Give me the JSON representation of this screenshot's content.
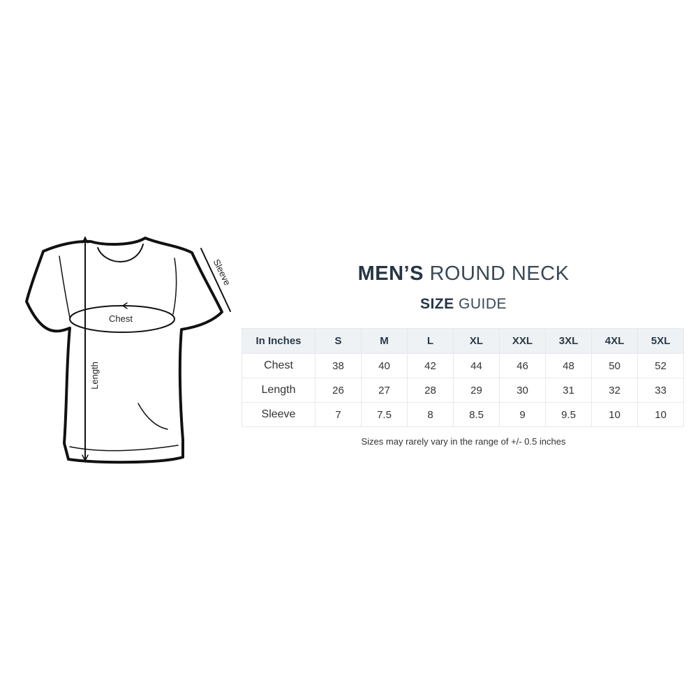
{
  "diagram": {
    "chest_label": "Chest",
    "length_label": "Length",
    "sleeve_label": "Sleeve"
  },
  "title": {
    "line1_bold": "MEN’S",
    "line1_light": "ROUND NECK",
    "line2_bold": "SIZE",
    "line2_light": "GUIDE"
  },
  "table": {
    "headers": [
      "In Inches",
      "S",
      "M",
      "L",
      "XL",
      "XXL",
      "3XL",
      "4XL",
      "5XL"
    ],
    "rows": [
      {
        "label": "Chest",
        "values": [
          "38",
          "40",
          "42",
          "44",
          "46",
          "48",
          "50",
          "52"
        ]
      },
      {
        "label": "Length",
        "values": [
          "26",
          "27",
          "28",
          "29",
          "30",
          "31",
          "32",
          "33"
        ]
      },
      {
        "label": "Sleeve",
        "values": [
          "7",
          "7.5",
          "8",
          "8.5",
          "9",
          "9.5",
          "10",
          "10"
        ]
      }
    ],
    "header_bg": "#eef2f5"
  },
  "note": "Sizes may rarely vary in the range of +/- 0.5 inches"
}
